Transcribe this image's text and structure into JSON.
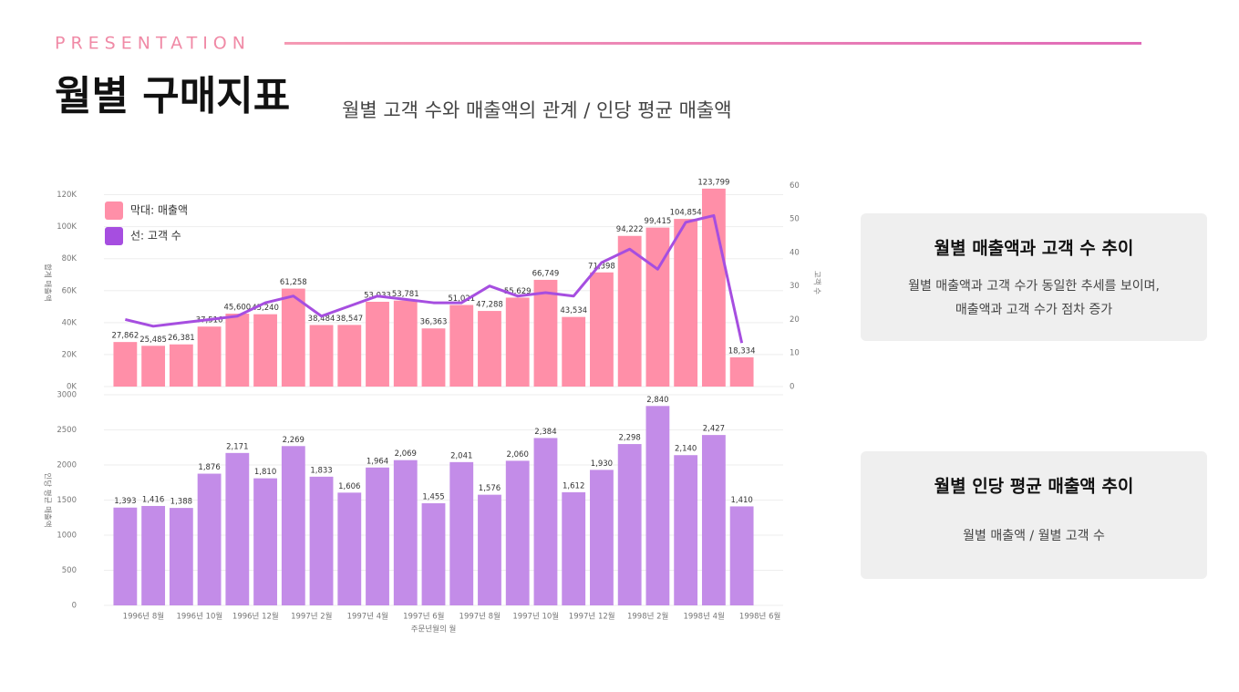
{
  "header": {
    "kicker": "PRESENTATION",
    "title": "월별 구매지표",
    "subtitle": "월별 고객 수와 매출액의 관계 / 인당 평균 매출액"
  },
  "chart_data": [
    {
      "type": "combo",
      "categories": [
        "1996년 8월",
        null,
        "1996년 10월",
        null,
        "1996년 12월",
        null,
        "1997년 2월",
        null,
        "1997년 4월",
        null,
        "1997년 6월",
        null,
        "1997년 8월",
        null,
        "1997년 10월",
        null,
        "1997년 12월",
        null,
        "1998년 2월",
        null,
        "1998년 4월",
        null,
        "1998년 6월"
      ],
      "y_label": "합계 매출액",
      "y2_label": "고객 수",
      "ylim": [
        0,
        130000
      ],
      "yticks": [
        {
          "value": 0,
          "label": "0K"
        },
        {
          "value": 20000,
          "label": "20K"
        },
        {
          "value": 40000,
          "label": "40K"
        },
        {
          "value": 60000,
          "label": "60K"
        },
        {
          "value": 80000,
          "label": "80K"
        },
        {
          "value": 100000,
          "label": "100K"
        },
        {
          "value": 120000,
          "label": "120K"
        }
      ],
      "y2lim": [
        0,
        62
      ],
      "y2ticks": [
        0,
        10,
        20,
        30,
        40,
        50,
        60
      ],
      "grid": true,
      "legend": "upper left",
      "series": [
        {
          "name": "막대: 매출액",
          "type": "bar",
          "color": "#ff8fa8",
          "values": [
            27862,
            25485,
            26381,
            37516,
            45600,
            45240,
            61258,
            38484,
            38547,
            53033,
            53781,
            36363,
            51021,
            47288,
            55629,
            66749,
            43534,
            71398,
            94222,
            99415,
            104854,
            123799,
            18334
          ],
          "value_labels": [
            "27,862",
            "25,485",
            "26,381",
            "37,516",
            "45,600",
            "45,240",
            "61,258",
            "38,484",
            "38,547",
            "53,033",
            "53,781",
            "36,363",
            "51,021",
            "47,288",
            "55,629",
            "66,749",
            "43,534",
            "71,398",
            "94,222",
            "99,415",
            "104,854",
            "123,799",
            "18,334"
          ]
        },
        {
          "name": "선: 고객 수",
          "type": "line",
          "axis": "y2",
          "color": "#a64ee0",
          "values": [
            20,
            18,
            19,
            20,
            21,
            25,
            27,
            21,
            24,
            27,
            26,
            25,
            25,
            30,
            27,
            28,
            27,
            37,
            41,
            35,
            49,
            51,
            13
          ]
        }
      ]
    },
    {
      "type": "bar",
      "y_label": "인당 평균 매출액",
      "x_label": "주문년월의 월",
      "ylim": [
        0,
        3000
      ],
      "yticks": [
        0,
        500,
        1000,
        1500,
        2000,
        2500,
        3000
      ],
      "grid": true,
      "series": [
        {
          "type": "bar",
          "color": "#c38ce8",
          "values": [
            1393,
            1416,
            1388,
            1876,
            2171,
            1810,
            2269,
            1833,
            1606,
            1964,
            2069,
            1455,
            2041,
            1576,
            2060,
            2384,
            1612,
            1930,
            2298,
            2840,
            2140,
            2427,
            1410
          ],
          "value_labels": [
            "1,393",
            "1,416",
            "1,388",
            "1,876",
            "2,171",
            "1,810",
            "2,269",
            "1,833",
            "1,606",
            "1,964",
            "2,069",
            "1,455",
            "2,041",
            "1,576",
            "2,060",
            "2,384",
            "1,612",
            "1,930",
            "2,298",
            "2,840",
            "2,140",
            "2,427",
            "1,410"
          ]
        }
      ]
    }
  ],
  "cards": [
    {
      "title": "월별 매출액과 고객 수 추이",
      "lines": [
        "월별 매출액과 고객 수가 동일한 추세를 보이며,",
        "매출액과 고객 수가 점차 증가"
      ]
    },
    {
      "title": "월별 인당 평균 매출액 추이",
      "lines": [
        "월별 매출액 / 월별 고객 수"
      ]
    }
  ]
}
